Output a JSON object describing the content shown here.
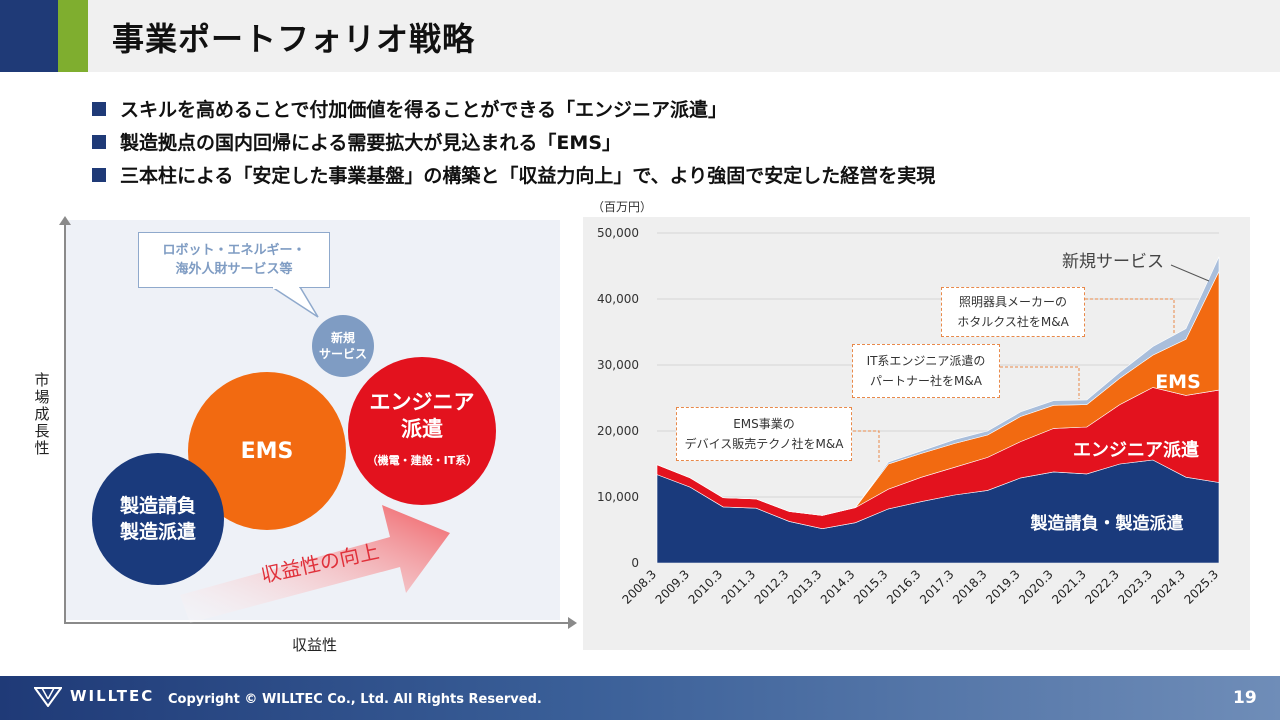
{
  "page": {
    "title": "事業ポートフォリオ戦略",
    "bullets": [
      "スキルを高めることで付加価値を得ることができる「エンジニア派遣」",
      "製造拠点の国内回帰による需要拡大が見込まれる「EMS」",
      "三本柱による「安定した事業基盤」の構築と「収益力向上」で、より強固で安定した経営を実現"
    ],
    "page_number": "19"
  },
  "portfolio": {
    "y_axis_label": "市場成長性",
    "x_axis_label": "収益性",
    "arrow_label": "収益性の向上",
    "callout_line1": "ロボット・エネルギー・",
    "callout_line2": "海外人財サービス等",
    "circle_new_line1": "新規",
    "circle_new_line2": "サービス",
    "circle_ems": "EMS",
    "circle_eng_line1": "エンジニア",
    "circle_eng_line2": "派遣",
    "circle_eng_sub": "（機電・建設・IT系）",
    "circle_seizo_line1": "製造請負",
    "circle_seizo_line2": "製造派遣",
    "colors": {
      "seizo": "#1a3a7c",
      "ems": "#f26a11",
      "eng": "#e3121e",
      "new": "#7f9cc3"
    }
  },
  "annotations": {
    "ems_ma_line1": "EMS事業の",
    "ems_ma_line2": "デバイス販売テクノ社をM&A",
    "it_ma_line1": "IT系エンジニア派遣の",
    "it_ma_line2": "パートナー社をM&A",
    "light_ma_line1": "照明器具メーカーの",
    "light_ma_line2": "ホタルクス社をM&A"
  },
  "chart_data": {
    "type": "area",
    "stacked": true,
    "unit_label": "（百万円）",
    "categories": [
      "2008.3",
      "2009.3",
      "2010.3",
      "2011.3",
      "2012.3",
      "2013.3",
      "2014.3",
      "2015.3",
      "2016.3",
      "2017.3",
      "2018.3",
      "2019.3",
      "2020.3",
      "2021.3",
      "2022.3",
      "2023.3",
      "2024.3",
      "2025.3"
    ],
    "ylim": [
      0,
      50000
    ],
    "yticks": [
      "0",
      "10,000",
      "20,000",
      "30,000",
      "40,000",
      "50,000"
    ],
    "ytick_values": [
      0,
      10000,
      20000,
      30000,
      40000,
      50000
    ],
    "series": [
      {
        "name": "製造請負・製造派遣",
        "color": "#1a3a7c",
        "values": [
          13400,
          11500,
          8500,
          8300,
          6300,
          5200,
          6100,
          8200,
          9300,
          10300,
          11000,
          12900,
          13800,
          13500,
          15000,
          15600,
          13000,
          12200
        ]
      },
      {
        "name": "エンジニア派遣",
        "color": "#e3121e",
        "values": [
          1500,
          1400,
          1400,
          1400,
          1500,
          2000,
          2300,
          3000,
          3700,
          4200,
          5000,
          5500,
          6600,
          7100,
          9000,
          11000,
          12400,
          14000
        ]
      },
      {
        "name": "EMS",
        "color": "#f26a11",
        "values": [
          0,
          0,
          0,
          0,
          0,
          0,
          0,
          3800,
          3600,
          3600,
          3400,
          3800,
          3500,
          3400,
          4000,
          4900,
          8500,
          18000
        ]
      },
      {
        "name": "新規サービス",
        "color": "#a9bedb",
        "values": [
          0,
          0,
          0,
          0,
          0,
          0,
          0,
          300,
          400,
          600,
          600,
          700,
          700,
          700,
          900,
          1300,
          1600,
          2200
        ]
      }
    ]
  }
}
